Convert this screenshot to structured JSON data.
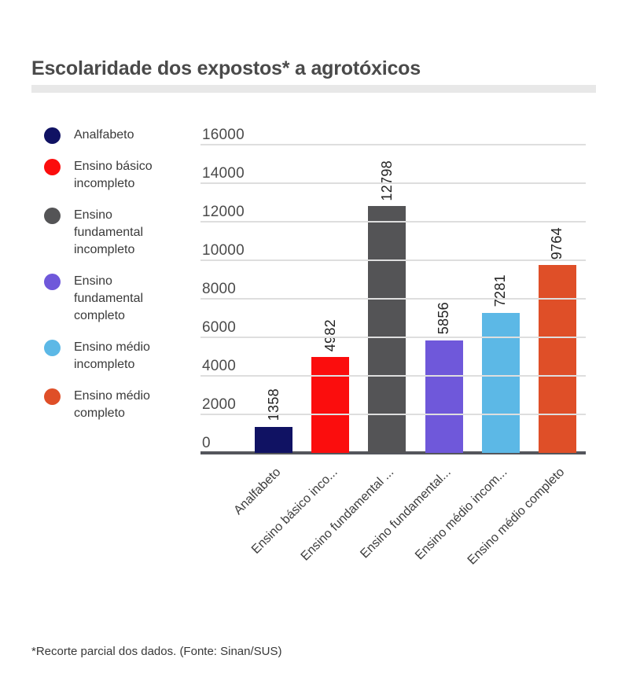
{
  "header": {
    "title": "Escolaridade dos expostos* a agrotóxicos"
  },
  "footer": {
    "note": "*Recorte parcial dos dados. (Fonte: Sinan/SUS)"
  },
  "legend": {
    "position": "left",
    "items": [
      {
        "label": "Analfabeto",
        "color": "#101263"
      },
      {
        "label": "Ensino básico incompleto",
        "color": "#fb0d0d"
      },
      {
        "label": "Ensino fundamental incompleto",
        "color": "#545456"
      },
      {
        "label": "Ensino fundamental completo",
        "color": "#6f58da"
      },
      {
        "label": "Ensino médio incompleto",
        "color": "#5cb8e6"
      },
      {
        "label": "Ensino médio completo",
        "color": "#df4f28"
      }
    ]
  },
  "chart_data": {
    "type": "bar",
    "title": "Escolaridade dos expostos* a agrotóxicos",
    "categories": [
      "Analfabeto",
      "Ensino básico incompleto",
      "Ensino fundamental incompleto",
      "Ensino fundamental completo",
      "Ensino médio incompleto",
      "Ensino médio completo"
    ],
    "x_tick_labels": [
      "Analfabeto",
      "Ensino básico inco...",
      "Ensino fundamental ...",
      "Ensino fundamental...",
      "Ensino médio incom...",
      "Ensino médio completo"
    ],
    "values": [
      1358,
      4982,
      12798,
      5856,
      7281,
      9764
    ],
    "bar_colors": [
      "#101263",
      "#fb0d0d",
      "#545456",
      "#6f58da",
      "#5cb8e6",
      "#df4f28"
    ],
    "xlabel": "",
    "ylabel": "",
    "ylim": [
      0,
      16000
    ],
    "y_ticks": [
      0,
      2000,
      4000,
      6000,
      8000,
      10000,
      12000,
      14000,
      16000
    ],
    "grid": true,
    "legend_position": "left",
    "data_label_rotation": 90,
    "x_tick_rotation": 45,
    "source_note": "*Recorte parcial dos dados. (Fonte: Sinan/SUS)"
  }
}
